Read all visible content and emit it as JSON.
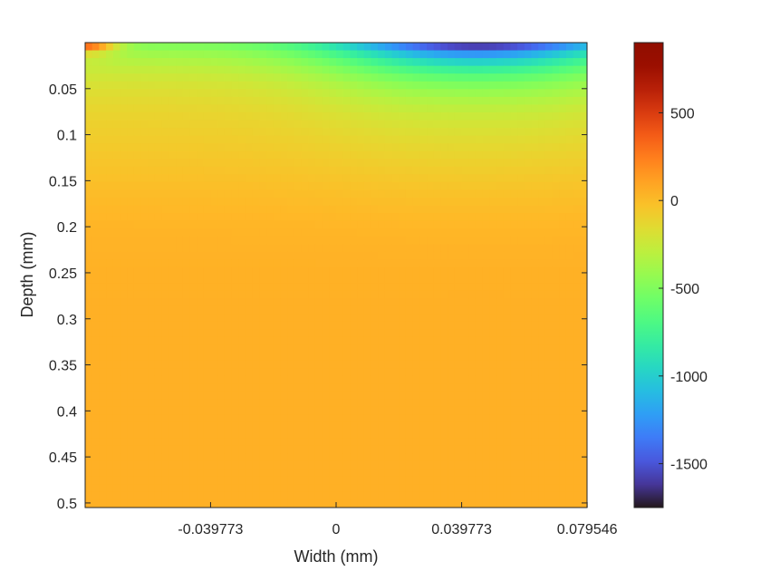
{
  "chart_data": {
    "type": "heatmap",
    "title": "",
    "xlabel": "Width (mm)",
    "ylabel": "Depth (mm)",
    "xlim": [
      -0.0795,
      0.0795
    ],
    "ylim": [
      0.0,
      0.505
    ],
    "y_reversed": true,
    "x_ticks": [
      {
        "value": -0.039773,
        "label": "-0.039773"
      },
      {
        "value": 0,
        "label": "0"
      },
      {
        "value": 0.039773,
        "label": "0.039773"
      },
      {
        "value": 0.079546,
        "label": "0.079546"
      }
    ],
    "y_ticks": [
      {
        "value": 0.05,
        "label": "0.05"
      },
      {
        "value": 0.1,
        "label": "0.1"
      },
      {
        "value": 0.15,
        "label": "0.15"
      },
      {
        "value": 0.2,
        "label": "0.2"
      },
      {
        "value": 0.25,
        "label": "0.25"
      },
      {
        "value": 0.3,
        "label": "0.3"
      },
      {
        "value": 0.35,
        "label": "0.35"
      },
      {
        "value": 0.4,
        "label": "0.4"
      },
      {
        "value": 0.45,
        "label": "0.45"
      },
      {
        "value": 0.5,
        "label": "0.5"
      }
    ],
    "colorbar": {
      "colormap": "turbo",
      "clim": [
        -1750,
        900
      ],
      "ticks": [
        {
          "value": 500,
          "label": "500"
        },
        {
          "value": 0,
          "label": "0"
        },
        {
          "value": -500,
          "label": "-500"
        },
        {
          "value": -1000,
          "label": "-1000"
        },
        {
          "value": -1500,
          "label": "-1500"
        }
      ]
    },
    "field_profile": {
      "surface_min_value": -1750,
      "surface_min_x": 0.045,
      "surface_max_value": 900,
      "surface_max_x": -0.0795,
      "near_surface_bulk_value": -500,
      "deep_value": 50,
      "grid": [
        24,
        60
      ]
    }
  }
}
